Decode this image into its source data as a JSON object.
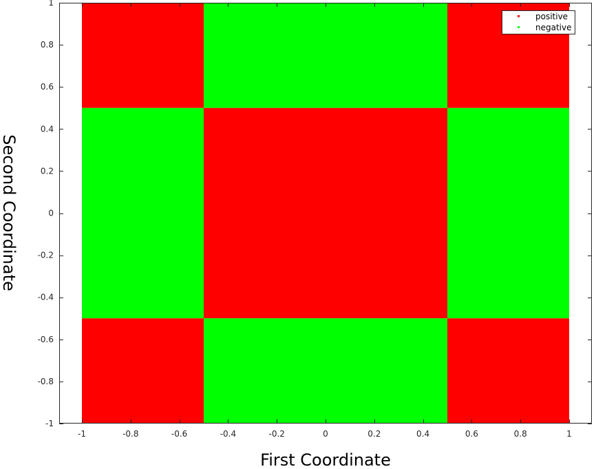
{
  "chart_data": {
    "type": "heatmap",
    "xlabel": "First Coordinate",
    "ylabel": "Second Coordinate",
    "xlim": [
      -1,
      1
    ],
    "ylim": [
      -1,
      1
    ],
    "xticks": [
      -1,
      -0.8,
      -0.6,
      -0.4,
      -0.2,
      0,
      0.2,
      0.4,
      0.6,
      0.8,
      1
    ],
    "yticks": [
      -1,
      -0.8,
      -0.6,
      -0.4,
      -0.2,
      0,
      0.2,
      0.4,
      0.6,
      0.8,
      1
    ],
    "xtick_labels": [
      "-1",
      "-0.8",
      "-0.6",
      "-0.4",
      "-0.2",
      "0",
      "0.2",
      "0.4",
      "0.6",
      "0.8",
      "1"
    ],
    "ytick_labels": [
      "-1",
      "-0.8",
      "-0.6",
      "-0.4",
      "-0.2",
      "0",
      "0.2",
      "0.4",
      "0.6",
      "0.8",
      "1"
    ],
    "grid": false,
    "legend_position": "top-right",
    "series": [
      {
        "name": "positive",
        "color": "#ff0000"
      },
      {
        "name": "negative",
        "color": "#00ff00"
      }
    ],
    "x_edges": [
      -1,
      -0.5,
      0.5,
      1
    ],
    "y_edges": [
      -1,
      -0.5,
      0.5,
      1
    ],
    "cells": [
      {
        "x0": -1,
        "x1": -0.5,
        "y0": 0.5,
        "y1": 1,
        "class": "positive"
      },
      {
        "x0": -0.5,
        "x1": 0.5,
        "y0": 0.5,
        "y1": 1,
        "class": "negative"
      },
      {
        "x0": 0.5,
        "x1": 1,
        "y0": 0.5,
        "y1": 1,
        "class": "positive"
      },
      {
        "x0": -1,
        "x1": -0.5,
        "y0": -0.5,
        "y1": 0.5,
        "class": "negative"
      },
      {
        "x0": -0.5,
        "x1": 0.5,
        "y0": -0.5,
        "y1": 0.5,
        "class": "positive"
      },
      {
        "x0": 0.5,
        "x1": 1,
        "y0": -0.5,
        "y1": 0.5,
        "class": "negative"
      },
      {
        "x0": -1,
        "x1": -0.5,
        "y0": -1,
        "y1": -0.5,
        "class": "positive"
      },
      {
        "x0": -0.5,
        "x1": 0.5,
        "y0": -1,
        "y1": -0.5,
        "class": "negative"
      },
      {
        "x0": 0.5,
        "x1": 1,
        "y0": -1,
        "y1": -0.5,
        "class": "positive"
      }
    ]
  }
}
